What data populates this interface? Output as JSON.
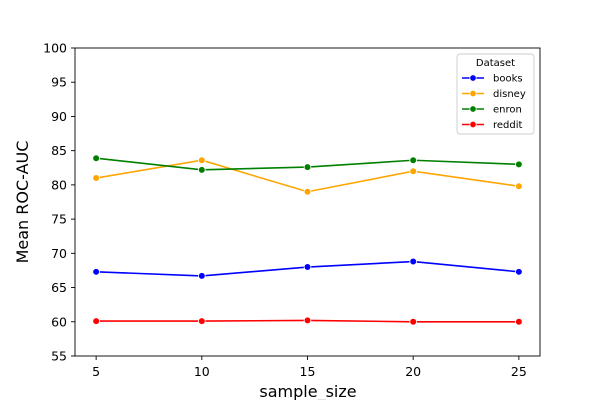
{
  "chart_data": {
    "type": "line",
    "title": "",
    "xlabel": "sample_size",
    "ylabel": "Mean ROC-AUC",
    "x": [
      5,
      10,
      15,
      20,
      25
    ],
    "xlim": [
      4,
      26
    ],
    "ylim": [
      55,
      100
    ],
    "yticks": [
      55,
      60,
      65,
      70,
      75,
      80,
      85,
      90,
      95,
      100
    ],
    "grid": false,
    "legend": {
      "title": "Dataset",
      "position": "top-right"
    },
    "series": [
      {
        "name": "books",
        "color": "#0000ff",
        "values": [
          67.3,
          66.7,
          68.0,
          68.8,
          67.3
        ]
      },
      {
        "name": "disney",
        "color": "#ffa500",
        "values": [
          81.0,
          83.6,
          79.0,
          82.0,
          79.8
        ]
      },
      {
        "name": "enron",
        "color": "#008000",
        "values": [
          83.9,
          82.2,
          82.6,
          83.6,
          83.0
        ]
      },
      {
        "name": "reddit",
        "color": "#ff0000",
        "values": [
          60.1,
          60.1,
          60.2,
          60.0,
          60.0
        ]
      }
    ]
  }
}
